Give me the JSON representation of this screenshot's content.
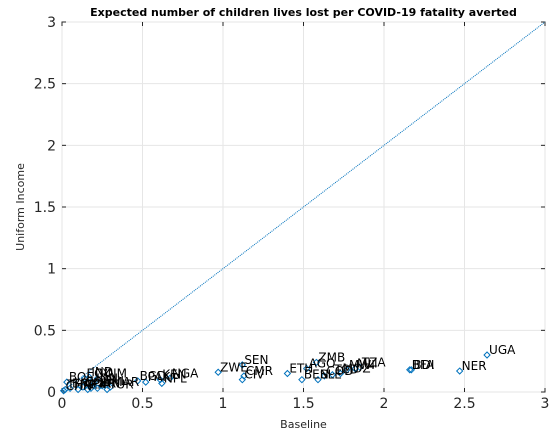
{
  "chart_data": {
    "type": "scatter",
    "title": "Expected number of children lives lost per COVID-19 fatality averted",
    "xlabel": "Baseline",
    "ylabel": "Uniform Income",
    "xlim": [
      0,
      3
    ],
    "ylim": [
      0,
      3
    ],
    "xticks": [
      0,
      0.5,
      1,
      1.5,
      2,
      2.5,
      3
    ],
    "yticks": [
      0,
      0.5,
      1,
      1.5,
      2,
      2.5,
      3
    ],
    "xtick_labels": [
      "0",
      "0.5",
      "1",
      "1.5",
      "2",
      "2.5",
      "3"
    ],
    "ytick_labels": [
      "0",
      "0.5",
      "1",
      "1.5",
      "2",
      "2.5",
      "3"
    ],
    "grid": true,
    "reference_line": {
      "x": [
        0,
        3
      ],
      "y": [
        0,
        3
      ],
      "style": "dotted",
      "color": "#0072BD"
    },
    "marker_color": "#0072BD",
    "points": [
      {
        "label": "UGA",
        "x": 2.64,
        "y": 0.3
      },
      {
        "label": "NER",
        "x": 2.47,
        "y": 0.17
      },
      {
        "label": "BDI",
        "x": 2.17,
        "y": 0.18
      },
      {
        "label": "BFA",
        "x": 2.16,
        "y": 0.18
      },
      {
        "label": "TZA",
        "x": 1.85,
        "y": 0.2
      },
      {
        "label": "MLI",
        "x": 1.82,
        "y": 0.19
      },
      {
        "label": "MWI",
        "x": 1.77,
        "y": 0.18
      },
      {
        "label": "MOZ",
        "x": 1.73,
        "y": 0.15
      },
      {
        "label": "TCD",
        "x": 1.68,
        "y": 0.14
      },
      {
        "label": "COD",
        "x": 1.63,
        "y": 0.13
      },
      {
        "label": "ZMB",
        "x": 1.58,
        "y": 0.24
      },
      {
        "label": "AGO",
        "x": 1.52,
        "y": 0.19
      },
      {
        "label": "SLE",
        "x": 1.59,
        "y": 0.1
      },
      {
        "label": "ETH",
        "x": 1.4,
        "y": 0.15
      },
      {
        "label": "BEN",
        "x": 1.49,
        "y": 0.1
      },
      {
        "label": "SEN",
        "x": 1.12,
        "y": 0.22
      },
      {
        "label": "CMR",
        "x": 1.13,
        "y": 0.13
      },
      {
        "label": "CIV",
        "x": 1.12,
        "y": 0.1
      },
      {
        "label": "ZWE",
        "x": 0.97,
        "y": 0.16
      },
      {
        "label": "KEN",
        "x": 0.61,
        "y": 0.1
      },
      {
        "label": "NGA",
        "x": 0.67,
        "y": 0.11
      },
      {
        "label": "NPL",
        "x": 0.62,
        "y": 0.07
      },
      {
        "label": "PAK",
        "x": 0.52,
        "y": 0.08
      },
      {
        "label": "BGD",
        "x": 0.47,
        "y": 0.09
      },
      {
        "label": "VNM",
        "x": 0.22,
        "y": 0.11
      },
      {
        "label": "IND",
        "x": 0.17,
        "y": 0.12
      },
      {
        "label": "EGY",
        "x": 0.14,
        "y": 0.11
      },
      {
        "label": "IDN",
        "x": 0.2,
        "y": 0.07
      },
      {
        "label": "PHL",
        "x": 0.25,
        "y": 0.05
      },
      {
        "label": "MAR",
        "x": 0.3,
        "y": 0.04
      },
      {
        "label": "PER",
        "x": 0.18,
        "y": 0.03
      },
      {
        "label": "COL",
        "x": 0.13,
        "y": 0.04
      },
      {
        "label": "BOL",
        "x": 0.03,
        "y": 0.08
      },
      {
        "label": "BRA",
        "x": 0.05,
        "y": 0.03
      },
      {
        "label": "MEX",
        "x": 0.1,
        "y": 0.02
      },
      {
        "label": "ZAF",
        "x": 0.16,
        "y": 0.02
      },
      {
        "label": "IRN",
        "x": 0.22,
        "y": 0.03
      },
      {
        "label": "TUR",
        "x": 0.28,
        "y": 0.02
      },
      {
        "label": "THA",
        "x": 0.02,
        "y": 0.02
      },
      {
        "label": "CHN",
        "x": 0.01,
        "y": 0.01
      }
    ]
  }
}
